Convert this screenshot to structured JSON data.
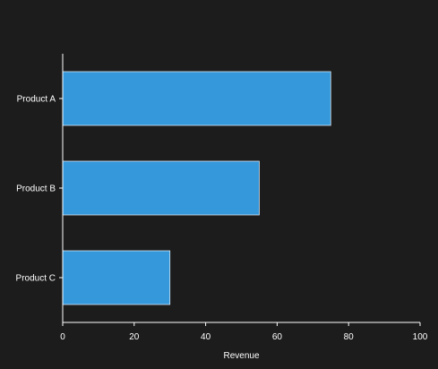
{
  "chart_data": {
    "type": "bar",
    "orientation": "horizontal",
    "title": "",
    "xlabel": "Revenue",
    "ylabel": "",
    "categories": [
      "Product A",
      "Product B",
      "Product C"
    ],
    "values": [
      75,
      55,
      30
    ],
    "xlim": [
      0,
      100
    ],
    "xticks": [
      0,
      20,
      40,
      60,
      80,
      100
    ],
    "grid": false,
    "legend": "none",
    "colors": {
      "background": "#1c1c1c",
      "bar": "#3498db",
      "bar_edge": "#d8e6f2",
      "axis": "#ffffff",
      "text": "#ffffff"
    }
  }
}
